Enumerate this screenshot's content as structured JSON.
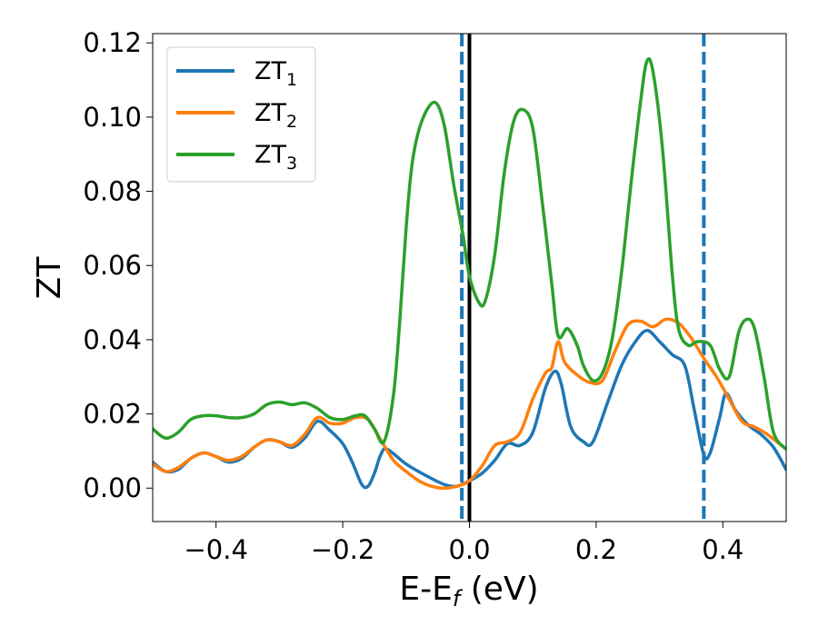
{
  "chart_data": {
    "type": "line",
    "xlabel": "E-E",
    "xlabel_sub": "f",
    "xlabel_unit": " (eV)",
    "ylabel": "ZT",
    "xlim": [
      -0.5,
      0.5
    ],
    "ylim": [
      -0.009,
      0.1225
    ],
    "x_ticks": [
      -0.4,
      -0.2,
      0.0,
      0.2,
      0.4
    ],
    "x_tick_labels": [
      "−0.4",
      "−0.2",
      "0.0",
      "0.2",
      "0.4"
    ],
    "y_ticks": [
      0.0,
      0.02,
      0.04,
      0.06,
      0.08,
      0.1,
      0.12
    ],
    "y_tick_labels": [
      "0.00",
      "0.02",
      "0.04",
      "0.06",
      "0.08",
      "0.10",
      "0.12"
    ],
    "grid": false,
    "legend_position": "top-left",
    "vertical_lines": [
      {
        "x": -0.012,
        "style": "dashed",
        "color": "#1f77b4"
      },
      {
        "x": 0.0,
        "style": "solid",
        "color": "#000000"
      },
      {
        "x": 0.37,
        "style": "dashed",
        "color": "#1f77b4"
      }
    ],
    "series": [
      {
        "name": "ZT",
        "name_sub": "1",
        "color": "#1f77b4",
        "points": [
          [
            -0.5,
            0.007
          ],
          [
            -0.48,
            0.0045
          ],
          [
            -0.46,
            0.005
          ],
          [
            -0.44,
            0.008
          ],
          [
            -0.42,
            0.0095
          ],
          [
            -0.4,
            0.0085
          ],
          [
            -0.38,
            0.007
          ],
          [
            -0.36,
            0.008
          ],
          [
            -0.34,
            0.011
          ],
          [
            -0.32,
            0.013
          ],
          [
            -0.3,
            0.0125
          ],
          [
            -0.28,
            0.011
          ],
          [
            -0.26,
            0.0135
          ],
          [
            -0.24,
            0.018
          ],
          [
            -0.22,
            0.0155
          ],
          [
            -0.2,
            0.012
          ],
          [
            -0.185,
            0.007
          ],
          [
            -0.17,
            0.001
          ],
          [
            -0.16,
            0.0005
          ],
          [
            -0.15,
            0.004
          ],
          [
            -0.14,
            0.009
          ],
          [
            -0.13,
            0.0105
          ],
          [
            -0.1,
            0.0065
          ],
          [
            -0.07,
            0.0035
          ],
          [
            -0.04,
            0.001
          ],
          [
            -0.02,
            0.0005
          ],
          [
            0.0,
            0.002
          ],
          [
            0.02,
            0.004
          ],
          [
            0.04,
            0.0075
          ],
          [
            0.06,
            0.012
          ],
          [
            0.08,
            0.0115
          ],
          [
            0.1,
            0.015
          ],
          [
            0.12,
            0.027
          ],
          [
            0.135,
            0.0315
          ],
          [
            0.145,
            0.028
          ],
          [
            0.16,
            0.0165
          ],
          [
            0.18,
            0.0125
          ],
          [
            0.195,
            0.0125
          ],
          [
            0.22,
            0.024
          ],
          [
            0.24,
            0.033
          ],
          [
            0.26,
            0.039
          ],
          [
            0.28,
            0.0425
          ],
          [
            0.3,
            0.0395
          ],
          [
            0.32,
            0.036
          ],
          [
            0.34,
            0.033
          ],
          [
            0.355,
            0.021
          ],
          [
            0.37,
            0.009
          ],
          [
            0.38,
            0.0095
          ],
          [
            0.395,
            0.019
          ],
          [
            0.405,
            0.0255
          ],
          [
            0.42,
            0.021
          ],
          [
            0.44,
            0.017
          ],
          [
            0.46,
            0.0145
          ],
          [
            0.48,
            0.011
          ],
          [
            0.5,
            0.005
          ]
        ]
      },
      {
        "name": "ZT",
        "name_sub": "2",
        "color": "#ff7f0e",
        "points": [
          [
            -0.5,
            0.0065
          ],
          [
            -0.48,
            0.0045
          ],
          [
            -0.46,
            0.0055
          ],
          [
            -0.44,
            0.008
          ],
          [
            -0.42,
            0.0095
          ],
          [
            -0.4,
            0.0085
          ],
          [
            -0.38,
            0.0075
          ],
          [
            -0.36,
            0.0085
          ],
          [
            -0.34,
            0.011
          ],
          [
            -0.32,
            0.013
          ],
          [
            -0.3,
            0.0125
          ],
          [
            -0.28,
            0.0115
          ],
          [
            -0.26,
            0.0145
          ],
          [
            -0.24,
            0.019
          ],
          [
            -0.22,
            0.0175
          ],
          [
            -0.2,
            0.0175
          ],
          [
            -0.18,
            0.019
          ],
          [
            -0.16,
            0.0185
          ],
          [
            -0.14,
            0.013
          ],
          [
            -0.12,
            0.0075
          ],
          [
            -0.1,
            0.0045
          ],
          [
            -0.08,
            0.002
          ],
          [
            -0.06,
            0.0005
          ],
          [
            -0.04,
            0.0
          ],
          [
            -0.02,
            0.0005
          ],
          [
            0.0,
            0.002
          ],
          [
            0.02,
            0.006
          ],
          [
            0.04,
            0.0115
          ],
          [
            0.06,
            0.0125
          ],
          [
            0.08,
            0.015
          ],
          [
            0.1,
            0.024
          ],
          [
            0.12,
            0.031
          ],
          [
            0.13,
            0.0325
          ],
          [
            0.14,
            0.0395
          ],
          [
            0.15,
            0.034
          ],
          [
            0.17,
            0.0305
          ],
          [
            0.19,
            0.0285
          ],
          [
            0.21,
            0.029
          ],
          [
            0.23,
            0.037
          ],
          [
            0.25,
            0.044
          ],
          [
            0.27,
            0.045
          ],
          [
            0.29,
            0.0435
          ],
          [
            0.31,
            0.0455
          ],
          [
            0.33,
            0.0445
          ],
          [
            0.35,
            0.0405
          ],
          [
            0.37,
            0.035
          ],
          [
            0.39,
            0.03
          ],
          [
            0.41,
            0.024
          ],
          [
            0.43,
            0.018
          ],
          [
            0.45,
            0.0165
          ],
          [
            0.47,
            0.0145
          ],
          [
            0.5,
            0.0105
          ]
        ]
      },
      {
        "name": "ZT",
        "name_sub": "3",
        "color": "#2ca02c",
        "points": [
          [
            -0.5,
            0.016
          ],
          [
            -0.48,
            0.0135
          ],
          [
            -0.46,
            0.015
          ],
          [
            -0.44,
            0.0185
          ],
          [
            -0.42,
            0.0195
          ],
          [
            -0.4,
            0.0195
          ],
          [
            -0.38,
            0.019
          ],
          [
            -0.36,
            0.019
          ],
          [
            -0.34,
            0.02
          ],
          [
            -0.32,
            0.0225
          ],
          [
            -0.3,
            0.0232
          ],
          [
            -0.28,
            0.0225
          ],
          [
            -0.26,
            0.023
          ],
          [
            -0.24,
            0.0215
          ],
          [
            -0.22,
            0.019
          ],
          [
            -0.2,
            0.0185
          ],
          [
            -0.18,
            0.0195
          ],
          [
            -0.165,
            0.0195
          ],
          [
            -0.15,
            0.016
          ],
          [
            -0.135,
            0.0125
          ],
          [
            -0.12,
            0.025
          ],
          [
            -0.11,
            0.045
          ],
          [
            -0.1,
            0.07
          ],
          [
            -0.09,
            0.088
          ],
          [
            -0.075,
            0.099
          ],
          [
            -0.055,
            0.104
          ],
          [
            -0.04,
            0.098
          ],
          [
            -0.025,
            0.082
          ],
          [
            -0.01,
            0.068
          ],
          [
            0.0,
            0.057
          ],
          [
            0.015,
            0.05
          ],
          [
            0.025,
            0.0505
          ],
          [
            0.04,
            0.063
          ],
          [
            0.055,
            0.085
          ],
          [
            0.07,
            0.099
          ],
          [
            0.085,
            0.102
          ],
          [
            0.1,
            0.097
          ],
          [
            0.115,
            0.077
          ],
          [
            0.13,
            0.055
          ],
          [
            0.14,
            0.041
          ],
          [
            0.155,
            0.043
          ],
          [
            0.17,
            0.0385
          ],
          [
            0.18,
            0.033
          ],
          [
            0.195,
            0.029
          ],
          [
            0.21,
            0.031
          ],
          [
            0.225,
            0.04
          ],
          [
            0.24,
            0.058
          ],
          [
            0.255,
            0.082
          ],
          [
            0.27,
            0.104
          ],
          [
            0.28,
            0.115
          ],
          [
            0.29,
            0.112
          ],
          [
            0.305,
            0.091
          ],
          [
            0.32,
            0.058
          ],
          [
            0.33,
            0.043
          ],
          [
            0.345,
            0.0385
          ],
          [
            0.36,
            0.0395
          ],
          [
            0.38,
            0.0385
          ],
          [
            0.395,
            0.032
          ],
          [
            0.41,
            0.03
          ],
          [
            0.425,
            0.042
          ],
          [
            0.438,
            0.0455
          ],
          [
            0.45,
            0.043
          ],
          [
            0.465,
            0.03
          ],
          [
            0.48,
            0.015
          ],
          [
            0.5,
            0.0105
          ]
        ]
      }
    ]
  }
}
